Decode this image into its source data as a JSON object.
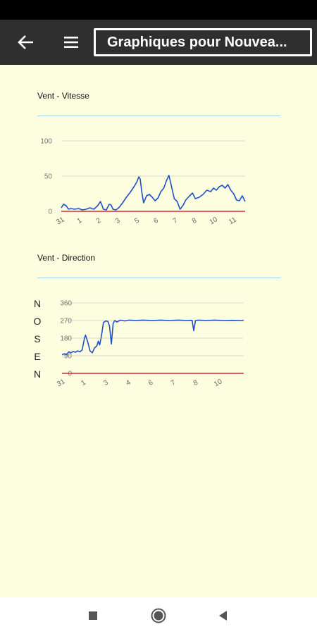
{
  "app_bar": {
    "title": "Graphiques pour Nouvea...",
    "back_icon": "arrow-left-icon",
    "menu_icon": "hamburger-menu-icon"
  },
  "colors": {
    "background": "#fdfde0",
    "line": "#1f50c8",
    "baseline": "#d32f2f",
    "grid": "#d9d9d0",
    "divider": "#9fd3e8"
  },
  "chart_data": [
    {
      "type": "line",
      "title": "Vent - Vitesse",
      "ylim": [
        0,
        100
      ],
      "y_ticks": [
        "0",
        "50",
        "100"
      ],
      "x_tick_labels": [
        "31",
        "1",
        "2",
        "3",
        "5",
        "6",
        "7",
        "8",
        "10",
        "11"
      ],
      "x_tick_positions": [
        0,
        1,
        2,
        3,
        4,
        5,
        6,
        7,
        8,
        9
      ],
      "xlim": [
        0,
        9.6
      ],
      "series": [
        {
          "x": [
            0,
            0.12,
            0.25,
            0.38,
            0.5,
            0.7,
            0.9,
            1.1,
            1.3,
            1.5,
            1.7,
            1.9,
            2.05,
            2.2,
            2.35,
            2.5,
            2.6,
            2.7,
            2.85,
            3.0,
            3.2,
            3.4,
            3.6,
            3.8,
            3.95,
            4.05,
            4.12,
            4.2,
            4.3,
            4.45,
            4.6,
            4.75,
            4.9,
            5.05,
            5.2,
            5.35,
            5.5,
            5.62,
            5.75,
            5.9,
            6.05,
            6.2,
            6.35,
            6.5,
            6.7,
            6.85,
            7.0,
            7.2,
            7.4,
            7.6,
            7.8,
            7.95,
            8.1,
            8.25,
            8.4,
            8.55,
            8.7,
            8.85,
            9.0,
            9.15,
            9.3,
            9.45,
            9.6
          ],
          "y": [
            5,
            10,
            8,
            3,
            4,
            3,
            4,
            2,
            3,
            5,
            3,
            8,
            14,
            3,
            2,
            10,
            9,
            3,
            2,
            5,
            12,
            20,
            27,
            35,
            42,
            49,
            46,
            28,
            12,
            22,
            24,
            20,
            15,
            19,
            28,
            33,
            44,
            51,
            36,
            18,
            14,
            3,
            8,
            16,
            22,
            26,
            18,
            20,
            24,
            30,
            28,
            33,
            30,
            35,
            37,
            33,
            38,
            30,
            25,
            16,
            15,
            22,
            14
          ]
        }
      ]
    },
    {
      "type": "line",
      "title": "Vent - Direction",
      "ylim": [
        0,
        360
      ],
      "y_ticks": [
        "0",
        "90",
        "180",
        "270",
        "360"
      ],
      "compass_labels": [
        "N",
        "O",
        "S",
        "E",
        "N"
      ],
      "x_tick_labels": [
        "31",
        "1",
        "3",
        "4",
        "6",
        "7",
        "8",
        "10"
      ],
      "x_tick_positions": [
        0,
        1,
        2,
        3,
        4,
        5,
        6,
        7
      ],
      "xlim": [
        0,
        8.1
      ],
      "series": [
        {
          "x": [
            0,
            0.1,
            0.2,
            0.3,
            0.4,
            0.5,
            0.6,
            0.7,
            0.8,
            0.9,
            1.0,
            1.05,
            1.15,
            1.25,
            1.35,
            1.45,
            1.55,
            1.62,
            1.68,
            1.75,
            1.85,
            1.95,
            2.05,
            2.12,
            2.2,
            2.28,
            2.35,
            2.45,
            2.6,
            2.8,
            3.0,
            3.3,
            3.6,
            4.0,
            4.4,
            4.8,
            5.2,
            5.5,
            5.8,
            5.87,
            5.95,
            6.1,
            6.4,
            6.8,
            7.2,
            7.6,
            8.0,
            8.1
          ],
          "y": [
            95,
            100,
            95,
            110,
            105,
            112,
            108,
            115,
            110,
            120,
            180,
            195,
            160,
            115,
            105,
            130,
            140,
            165,
            145,
            185,
            260,
            268,
            265,
            240,
            150,
            255,
            270,
            262,
            272,
            268,
            272,
            270,
            272,
            270,
            272,
            270,
            272,
            270,
            271,
            218,
            270,
            272,
            270,
            272,
            270,
            271,
            270,
            270
          ]
        }
      ]
    }
  ]
}
